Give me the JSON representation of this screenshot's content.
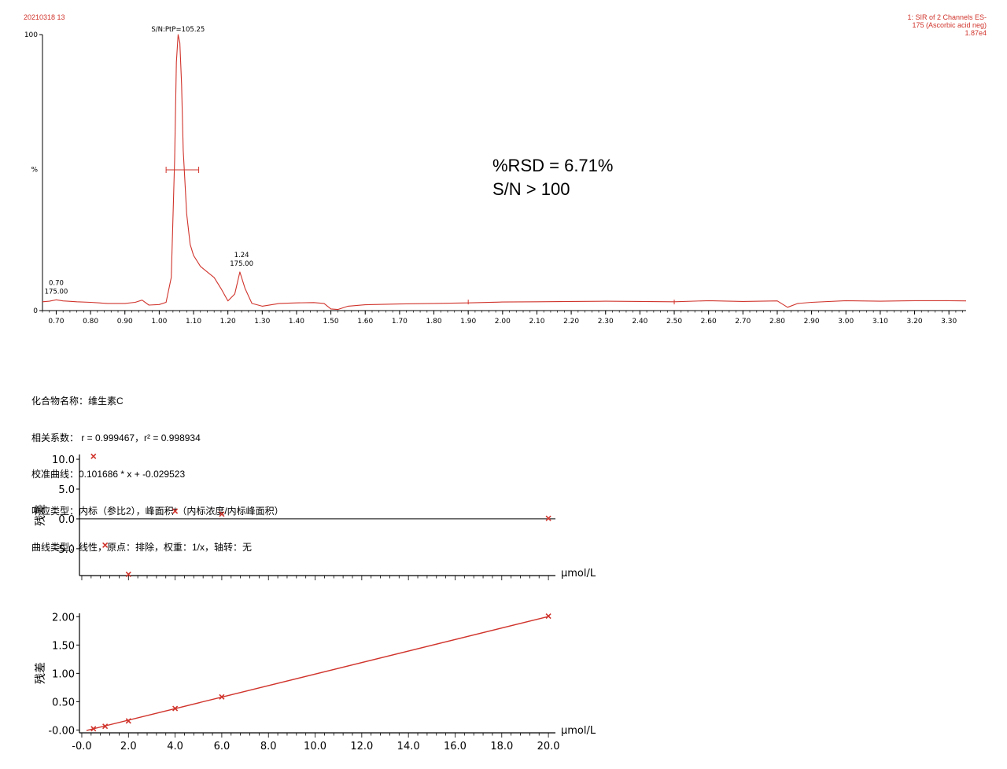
{
  "header": {
    "sample_id": "20210318 13",
    "channel_line1": "1: SIR of 2 Channels ES-",
    "channel_line2": "175 (Ascorbic acid neg)",
    "channel_line3": "1.87e4"
  },
  "annotation": {
    "rsd": "%RSD = 6.71%",
    "sn": "S/N > 100"
  },
  "info": {
    "compound": "化合物名称：维生素C",
    "correlation": "相关系数： r = 0.999467，r² = 0.998934",
    "calibration": "校准曲线：0.101686 * x + -0.029523",
    "response": "响应类型：内标（参比2），峰面积*（内标浓度/内标峰面积）",
    "curve": "曲线类型：线性，原点：排除，权重：1/x，轴转：无"
  },
  "colors": {
    "trace": "#d0342c",
    "axis": "#000000"
  },
  "chart_data": [
    {
      "type": "line",
      "name": "chromatogram",
      "xlim": [
        0.66,
        3.35
      ],
      "ylim": [
        0,
        100
      ],
      "ylabel": "%",
      "y_ticks": [
        {
          "v": 0,
          "label": "0"
        },
        {
          "v": 100,
          "label": "100"
        }
      ],
      "x_ticks": [
        "0.70",
        "0.80",
        "0.90",
        "1.00",
        "1.10",
        "1.20",
        "1.30",
        "1.40",
        "1.50",
        "1.60",
        "1.70",
        "1.80",
        "1.90",
        "2.00",
        "2.10",
        "2.20",
        "2.30",
        "2.40",
        "2.50",
        "2.60",
        "2.70",
        "2.80",
        "2.90",
        "3.00",
        "3.10",
        "3.20",
        "3.30"
      ],
      "x": [
        0.66,
        0.68,
        0.7,
        0.72,
        0.76,
        0.8,
        0.85,
        0.9,
        0.93,
        0.95,
        0.97,
        1.0,
        1.02,
        1.035,
        1.045,
        1.05,
        1.055,
        1.06,
        1.065,
        1.07,
        1.08,
        1.09,
        1.1,
        1.12,
        1.14,
        1.16,
        1.18,
        1.2,
        1.22,
        1.235,
        1.25,
        1.27,
        1.3,
        1.35,
        1.4,
        1.45,
        1.48,
        1.5,
        1.52,
        1.55,
        1.6,
        1.7,
        1.8,
        1.9,
        2.0,
        2.1,
        2.2,
        2.3,
        2.4,
        2.5,
        2.6,
        2.7,
        2.8,
        2.83,
        2.86,
        2.9,
        3.0,
        3.1,
        3.2,
        3.3,
        3.35
      ],
      "y": [
        3.2,
        3.4,
        3.9,
        3.5,
        3.2,
        3.0,
        2.6,
        2.6,
        3.0,
        3.8,
        2.0,
        2.2,
        3.0,
        12.0,
        55.0,
        90.0,
        100.0,
        97.0,
        82.0,
        58.0,
        35.0,
        24.0,
        20.0,
        16.0,
        14.0,
        12.0,
        8.0,
        3.5,
        6.0,
        14.0,
        8.0,
        2.6,
        1.6,
        2.6,
        2.8,
        2.9,
        2.6,
        0.6,
        0.4,
        1.6,
        2.1,
        2.4,
        2.6,
        2.8,
        3.1,
        3.2,
        3.3,
        3.4,
        3.3,
        3.2,
        3.6,
        3.3,
        3.5,
        1.2,
        2.6,
        3.0,
        3.6,
        3.4,
        3.6,
        3.6,
        3.5
      ],
      "peak_labels": [
        {
          "x": 0.7,
          "y": 3.9,
          "line1": "0.70",
          "line2": "175.00"
        },
        {
          "x": 1.24,
          "y": 14.0,
          "line1": "1.24",
          "line2": "175.00"
        },
        {
          "x": 1.055,
          "y": 100.0,
          "line1": "S/N:PtP=105.25",
          "line2": ""
        }
      ],
      "peak_width_bar": {
        "x1": 1.02,
        "x2": 1.115,
        "y": 51
      },
      "noise_region": {
        "x1": 1.9,
        "x2": 2.5
      }
    },
    {
      "type": "scatter",
      "name": "residuals",
      "ylabel": "残差",
      "xlabel": "μmol/L",
      "xlim": [
        -0.1,
        20.3
      ],
      "ylim": [
        -9.5,
        10.8
      ],
      "y_ticks": [
        "10.0",
        "5.0",
        "0.0",
        "-5.0"
      ],
      "y_tick_values": [
        10,
        5,
        0,
        -5
      ],
      "x": [
        0.5,
        1.0,
        2.0,
        4.0,
        6.0,
        20.0
      ],
      "y": [
        10.5,
        -4.4,
        -9.3,
        1.3,
        0.8,
        0.1
      ]
    },
    {
      "type": "line",
      "name": "calibration",
      "ylabel": "残差",
      "xlabel": "μmol/L",
      "xlim": [
        -0.1,
        20.3
      ],
      "ylim": [
        -0.05,
        2.06
      ],
      "y_ticks": [
        "2.00",
        "1.50",
        "1.00",
        "0.50",
        "-0.00"
      ],
      "y_tick_values": [
        2.0,
        1.5,
        1.0,
        0.5,
        0.0
      ],
      "x_ticks": [
        "-0.0",
        "2.0",
        "4.0",
        "6.0",
        "8.0",
        "10.0",
        "12.0",
        "14.0",
        "16.0",
        "18.0",
        "20.0"
      ],
      "x_tick_values": [
        0,
        2,
        4,
        6,
        8,
        10,
        12,
        14,
        16,
        18,
        20
      ],
      "x": [
        0.5,
        1.0,
        2.0,
        4.0,
        6.0,
        20.0
      ],
      "y": [
        0.022,
        0.065,
        0.16,
        0.38,
        0.585,
        2.01
      ],
      "fit": {
        "slope": 0.101686,
        "intercept": -0.029523
      }
    }
  ]
}
